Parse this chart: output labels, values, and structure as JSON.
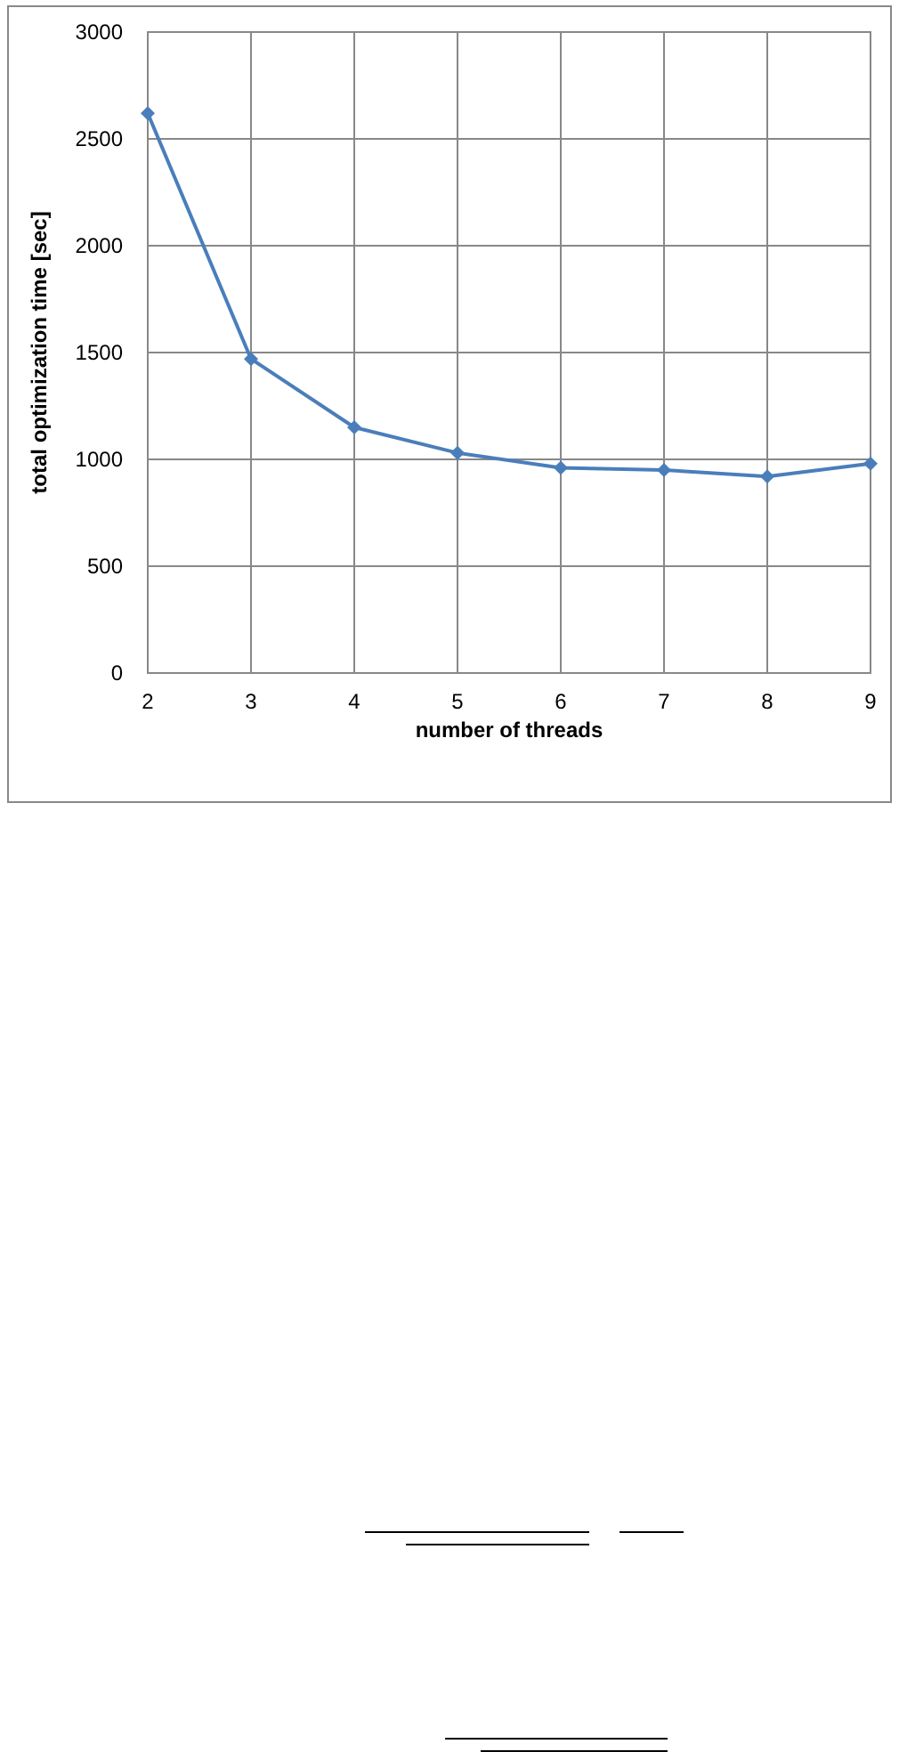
{
  "chart_data": {
    "type": "line",
    "xlabel": "number of threads",
    "ylabel": "total optimization time [sec]",
    "x": [
      2,
      3,
      4,
      5,
      6,
      7,
      8,
      9
    ],
    "series": [
      {
        "color": "#4a7ebb",
        "values": [
          2620,
          1470,
          1150,
          1030,
          960,
          950,
          920,
          980
        ]
      }
    ],
    "xlim": [
      2,
      9
    ],
    "xticks": [
      2,
      3,
      4,
      5,
      6,
      7,
      8,
      9
    ],
    "ylim": [
      0,
      3000
    ],
    "yticks": [
      0,
      500,
      1000,
      1500,
      2000,
      2500,
      3000
    ],
    "grid": true,
    "marker": "diamond",
    "line_style": "solid"
  }
}
